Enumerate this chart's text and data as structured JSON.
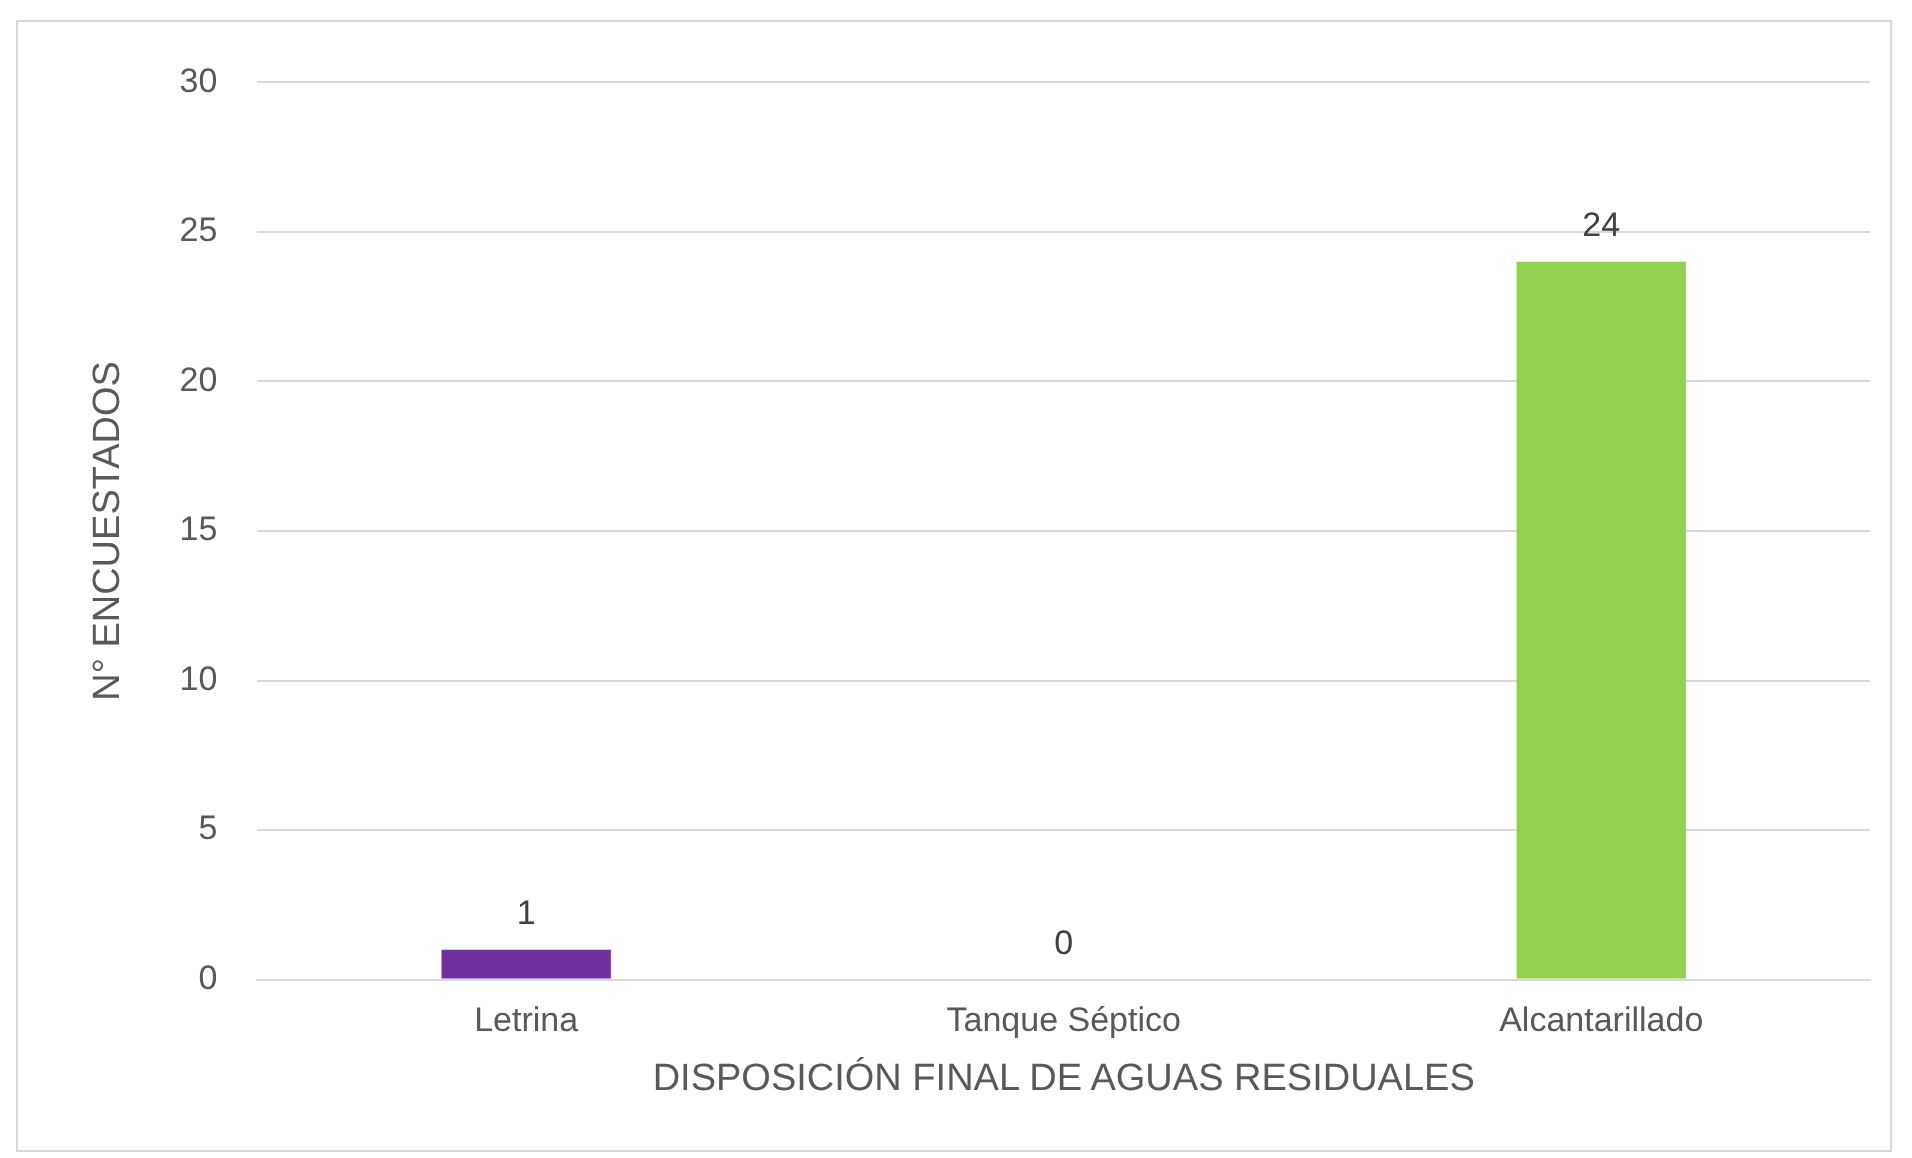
{
  "chart_data": {
    "type": "bar",
    "xlabel": "DISPOSICIÓN FINAL DE AGUAS RESIDUALES",
    "ylabel": "N° ENCUESTADOS",
    "categories": [
      "Letrina",
      "Tanque Séptico",
      "Alcantarillado"
    ],
    "values": [
      1,
      0,
      24
    ],
    "colors": [
      "#7030a0",
      "#5b9bd5",
      "#92d050"
    ],
    "ylim": [
      0,
      30
    ],
    "yticks": [
      0,
      5,
      10,
      15,
      20,
      25,
      30
    ],
    "grid": "y",
    "data_labels": true,
    "legend": false
  }
}
